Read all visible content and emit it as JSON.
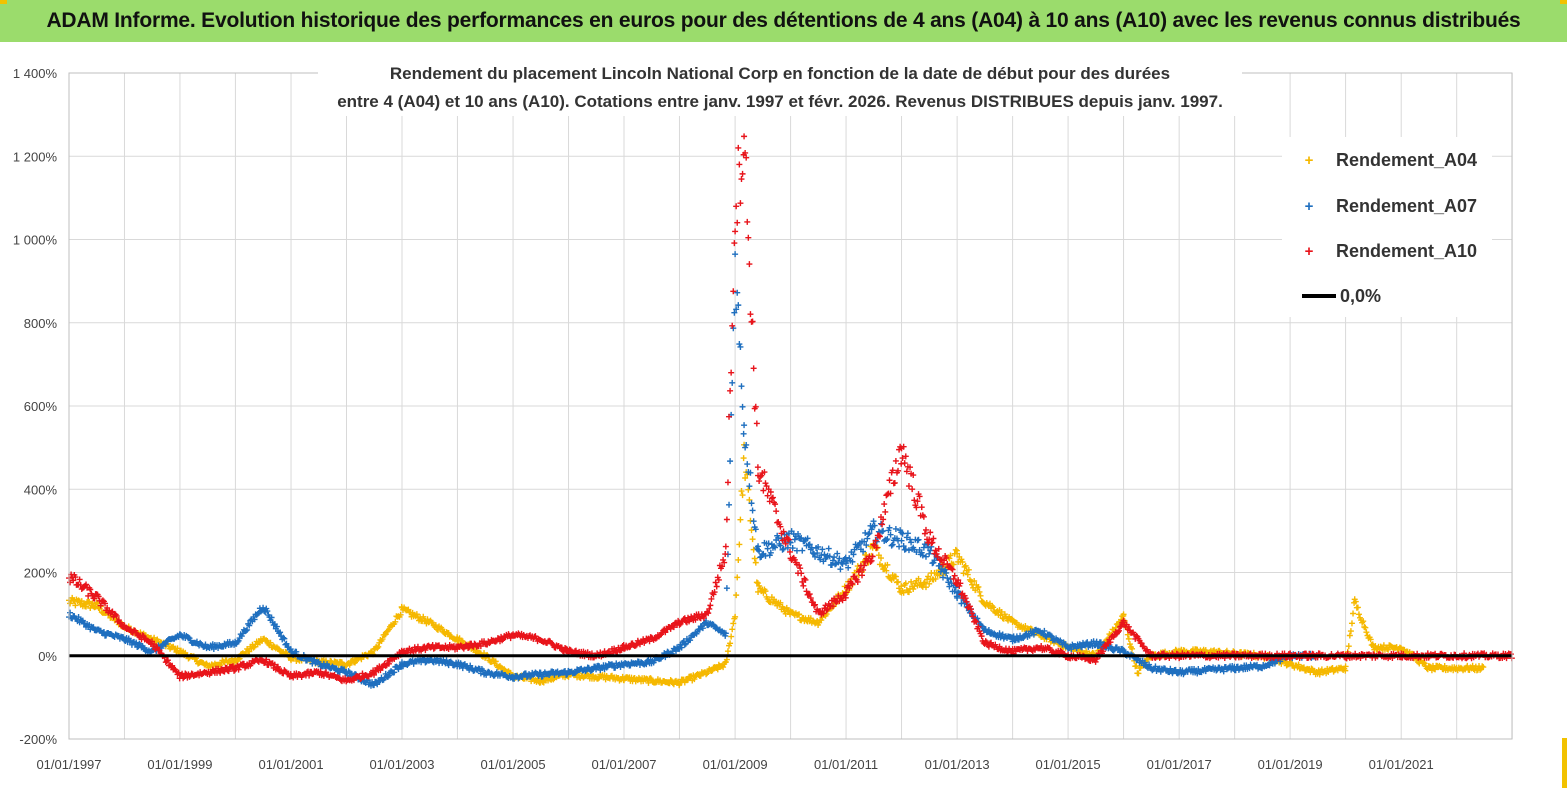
{
  "banner": {
    "title": "ADAM Informe. Evolution historique des performances en euros pour des détentions de 4 ans (A04) à 10 ans (A10) avec les revenus connus distribués",
    "background": "#9bdc6c",
    "accent": "#f2c200"
  },
  "chart_data": {
    "type": "scatter",
    "title_line1": "Rendement du placement Lincoln National Corp en fonction de la date de début pour des durées",
    "title_line2": "entre 4 (A04) et 10 ans (A10). Cotations entre janv. 1997 et févr. 2026. Revenus DISTRIBUES depuis janv. 1997.",
    "xlabel": "",
    "ylabel": "",
    "x_ticks": [
      "01/01/1997",
      "01/01/1999",
      "01/01/2001",
      "01/01/2003",
      "01/01/2005",
      "01/01/2007",
      "01/01/2009",
      "01/01/2011",
      "01/01/2013",
      "01/01/2015",
      "01/01/2017",
      "01/01/2019",
      "01/01/2021"
    ],
    "x_range": [
      "01/01/1997",
      "31/12/2022"
    ],
    "y_ticks": [
      "-200%",
      "0%",
      "200%",
      "400%",
      "600%",
      "800%",
      "1 000%",
      "1 200%",
      "1 400%"
    ],
    "y_range": [
      -200,
      1400
    ],
    "grid": true,
    "legend_position": "top-right",
    "series": [
      {
        "name": "Rendement_A04",
        "color": "#f5b800",
        "marker": "plus",
        "points": [
          [
            "01/01/1997",
            130
          ],
          [
            "01/07/1997",
            120
          ],
          [
            "01/01/1998",
            70
          ],
          [
            "01/07/1998",
            40
          ],
          [
            "01/01/1999",
            10
          ],
          [
            "01/07/1999",
            -25
          ],
          [
            "01/01/2000",
            -10
          ],
          [
            "01/07/2000",
            40
          ],
          [
            "01/01/2001",
            -5
          ],
          [
            "01/07/2001",
            -15
          ],
          [
            "01/01/2002",
            -20
          ],
          [
            "01/07/2002",
            10
          ],
          [
            "01/01/2003",
            110
          ],
          [
            "01/07/2003",
            80
          ],
          [
            "01/01/2004",
            40
          ],
          [
            "01/07/2004",
            0
          ],
          [
            "01/01/2005",
            -50
          ],
          [
            "01/07/2005",
            -60
          ],
          [
            "01/01/2006",
            -45
          ],
          [
            "01/07/2006",
            -50
          ],
          [
            "01/01/2007",
            -55
          ],
          [
            "01/07/2007",
            -60
          ],
          [
            "01/01/2008",
            -65
          ],
          [
            "01/07/2008",
            -40
          ],
          [
            "01/11/2008",
            -20
          ],
          [
            "01/01/2009",
            100
          ],
          [
            "01/03/2009",
            480
          ],
          [
            "01/06/2009",
            160
          ],
          [
            "01/01/2010",
            100
          ],
          [
            "01/07/2010",
            80
          ],
          [
            "01/01/2011",
            160
          ],
          [
            "01/07/2011",
            260
          ],
          [
            "01/01/2012",
            160
          ],
          [
            "01/07/2012",
            180
          ],
          [
            "01/01/2013",
            240
          ],
          [
            "01/07/2013",
            130
          ],
          [
            "01/01/2014",
            80
          ],
          [
            "01/07/2014",
            50
          ],
          [
            "01/01/2015",
            20
          ],
          [
            "01/07/2015",
            0
          ],
          [
            "01/01/2016",
            95
          ],
          [
            "01/04/2016",
            -40
          ],
          [
            "01/07/2016",
            0
          ],
          [
            "01/01/2017",
            10
          ],
          [
            "01/07/2017",
            10
          ],
          [
            "01/01/2018",
            5
          ],
          [
            "01/07/2018",
            0
          ],
          [
            "01/01/2019",
            -20
          ],
          [
            "01/07/2019",
            -40
          ],
          [
            "01/01/2020",
            -30
          ],
          [
            "01/03/2020",
            130
          ],
          [
            "01/07/2020",
            20
          ],
          [
            "01/01/2021",
            20
          ],
          [
            "01/07/2021",
            -30
          ],
          [
            "01/01/2022",
            -30
          ],
          [
            "01/07/2022",
            -30
          ]
        ]
      },
      {
        "name": "Rendement_A07",
        "color": "#1f6fbf",
        "marker": "plus",
        "points": [
          [
            "01/01/1997",
            100
          ],
          [
            "01/07/1997",
            60
          ],
          [
            "01/01/1998",
            40
          ],
          [
            "01/07/1998",
            10
          ],
          [
            "01/01/1999",
            50
          ],
          [
            "01/07/1999",
            20
          ],
          [
            "01/01/2000",
            30
          ],
          [
            "01/07/2000",
            120
          ],
          [
            "01/01/2001",
            10
          ],
          [
            "01/07/2001",
            -20
          ],
          [
            "01/01/2002",
            -40
          ],
          [
            "01/07/2002",
            -70
          ],
          [
            "01/01/2003",
            -20
          ],
          [
            "01/07/2003",
            -10
          ],
          [
            "01/01/2004",
            -20
          ],
          [
            "01/07/2004",
            -40
          ],
          [
            "01/01/2005",
            -50
          ],
          [
            "01/07/2005",
            -45
          ],
          [
            "01/01/2006",
            -40
          ],
          [
            "01/07/2006",
            -30
          ],
          [
            "01/01/2007",
            -20
          ],
          [
            "01/07/2007",
            -15
          ],
          [
            "01/01/2008",
            20
          ],
          [
            "01/07/2008",
            80
          ],
          [
            "01/11/2008",
            50
          ],
          [
            "01/01/2009",
            950
          ],
          [
            "01/03/2009",
            550
          ],
          [
            "01/06/2009",
            250
          ],
          [
            "01/01/2010",
            280
          ],
          [
            "01/07/2010",
            250
          ],
          [
            "01/01/2011",
            220
          ],
          [
            "01/07/2011",
            300
          ],
          [
            "01/01/2012",
            280
          ],
          [
            "01/07/2012",
            250
          ],
          [
            "01/01/2013",
            150
          ],
          [
            "01/07/2013",
            60
          ],
          [
            "01/01/2014",
            40
          ],
          [
            "01/07/2014",
            60
          ],
          [
            "01/01/2015",
            20
          ],
          [
            "01/07/2015",
            30
          ],
          [
            "01/01/2016",
            10
          ],
          [
            "01/07/2016",
            -30
          ],
          [
            "01/01/2017",
            -40
          ],
          [
            "01/07/2017",
            -35
          ],
          [
            "01/01/2018",
            -30
          ],
          [
            "01/07/2018",
            -25
          ],
          [
            "01/01/2019",
            0
          ],
          [
            "01/07/2019",
            0
          ]
        ]
      },
      {
        "name": "Rendement_A10",
        "color": "#e8141b",
        "marker": "plus",
        "points": [
          [
            "01/01/1997",
            190
          ],
          [
            "01/07/1997",
            140
          ],
          [
            "01/01/1998",
            70
          ],
          [
            "01/07/1998",
            30
          ],
          [
            "01/01/1999",
            -50
          ],
          [
            "01/07/1999",
            -40
          ],
          [
            "01/01/2000",
            -30
          ],
          [
            "01/07/2000",
            -10
          ],
          [
            "01/01/2001",
            -50
          ],
          [
            "01/07/2001",
            -40
          ],
          [
            "01/01/2002",
            -60
          ],
          [
            "01/07/2002",
            -40
          ],
          [
            "01/01/2003",
            10
          ],
          [
            "01/07/2003",
            20
          ],
          [
            "01/01/2004",
            20
          ],
          [
            "01/07/2004",
            30
          ],
          [
            "01/01/2005",
            50
          ],
          [
            "01/07/2005",
            40
          ],
          [
            "01/01/2006",
            10
          ],
          [
            "01/07/2006",
            0
          ],
          [
            "01/01/2007",
            20
          ],
          [
            "01/07/2007",
            40
          ],
          [
            "01/01/2008",
            80
          ],
          [
            "01/07/2008",
            100
          ],
          [
            "01/11/2008",
            250
          ],
          [
            "01/01/2009",
            1080
          ],
          [
            "01/03/2009",
            1250
          ],
          [
            "01/06/2009",
            450
          ],
          [
            "01/01/2010",
            250
          ],
          [
            "01/07/2010",
            100
          ],
          [
            "01/01/2011",
            150
          ],
          [
            "01/07/2011",
            250
          ],
          [
            "01/01/2012",
            500
          ],
          [
            "01/07/2012",
            280
          ],
          [
            "01/01/2013",
            180
          ],
          [
            "01/07/2013",
            30
          ],
          [
            "01/01/2014",
            10
          ],
          [
            "01/07/2014",
            20
          ],
          [
            "01/01/2015",
            0
          ],
          [
            "01/07/2015",
            -10
          ],
          [
            "01/01/2016",
            80
          ],
          [
            "01/07/2016",
            0
          ],
          [
            "01/01/2017",
            0
          ],
          [
            "01/07/2017",
            0
          ],
          [
            "01/01/2018",
            0
          ],
          [
            "01/07/2018",
            0
          ],
          [
            "01/01/2019",
            0
          ],
          [
            "01/07/2019",
            0
          ],
          [
            "01/01/2020",
            0
          ],
          [
            "01/07/2020",
            0
          ],
          [
            "01/01/2021",
            0
          ],
          [
            "01/07/2021",
            0
          ],
          [
            "01/01/2022",
            0
          ],
          [
            "01/07/2022",
            0
          ],
          [
            "31/12/2022",
            0
          ]
        ]
      }
    ],
    "reference_line": {
      "name": "0,0%",
      "value": 0,
      "color": "#000000"
    }
  }
}
